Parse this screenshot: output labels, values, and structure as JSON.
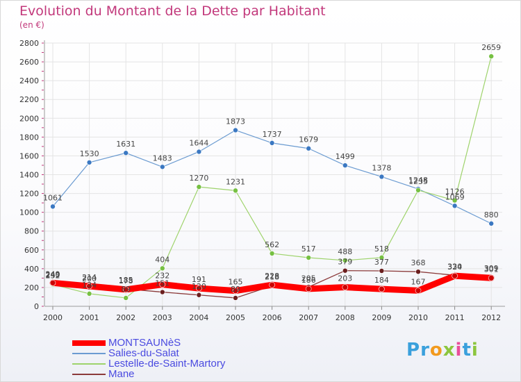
{
  "title": "Evolution du Montant de la Dette par Habitant",
  "subtitle": "(en €)",
  "brand": {
    "text": "Proxiti",
    "letters": [
      "P",
      "r",
      "o",
      "x",
      "i",
      "t",
      "i"
    ],
    "letter_colors": [
      "#3aa0dc",
      "#3aa0dc",
      "#f29a1e",
      "#8cc63e",
      "#e94e9a",
      "#3aa0dc",
      "#8cc63e"
    ]
  },
  "chart_data": {
    "type": "line",
    "title": "Evolution du Montant de la Dette par Habitant",
    "ylabel": "(en €)",
    "xlabel": "",
    "ylim": [
      0,
      2800
    ],
    "yticks": [
      0,
      200,
      400,
      600,
      800,
      1000,
      1200,
      1400,
      1600,
      1800,
      2000,
      2200,
      2400,
      2600,
      2800
    ],
    "x": [
      "2000",
      "2001",
      "2002",
      "2003",
      "2004",
      "2005",
      "2006",
      "2007",
      "2008",
      "2009",
      "2010",
      "2011",
      "2012"
    ],
    "grid": true,
    "legend_position": "bottom-left",
    "series": [
      {
        "name": "MONTSAUNèS",
        "color": "#ff0000",
        "marker": "#cc0000",
        "values": [
          249,
          214,
          178,
          232,
          191,
          165,
          228,
          186,
          203,
          184,
          167,
          324,
          301
        ]
      },
      {
        "name": "Salies-du-Salat",
        "color": "#6b9bd1",
        "marker": "#3b78c2",
        "values": [
          1061,
          1530,
          1631,
          1483,
          1644,
          1873,
          1737,
          1679,
          1499,
          1378,
          1248,
          1069,
          880
        ]
      },
      {
        "name": "Lestelle-de-Saint-Martory",
        "color": "#9ed36b",
        "marker": "#76c042",
        "values": [
          232,
          134,
          89,
          404,
          1270,
          1231,
          562,
          517,
          488,
          518,
          1235,
          1126,
          2659
        ]
      },
      {
        "name": "Mane",
        "color": "#8b3a3a",
        "marker": "#6b1f1f",
        "values": [
          240,
          200,
          185,
          151,
          120,
          89,
          218,
          205,
          379,
          377,
          368,
          330,
          309
        ]
      }
    ]
  }
}
